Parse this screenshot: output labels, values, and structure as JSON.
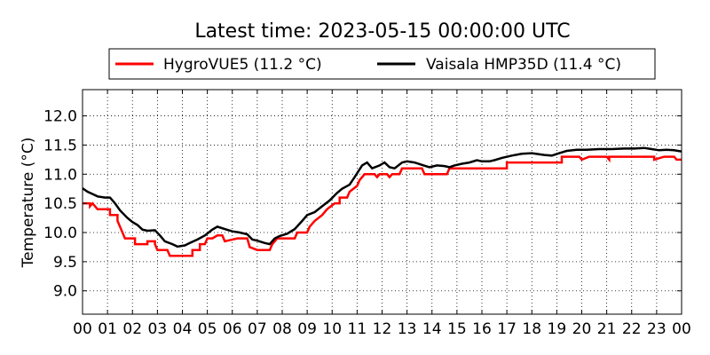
{
  "chart_data": {
    "type": "line",
    "title": "Latest time: 2023-05-15 00:00:00 UTC",
    "xlabel": "",
    "ylabel": "Temperature (°C)",
    "xlim": [
      0,
      24
    ],
    "ylim": [
      8.6,
      12.45
    ],
    "x_ticks": [
      0,
      1,
      2,
      3,
      4,
      5,
      6,
      7,
      8,
      9,
      10,
      11,
      12,
      13,
      14,
      15,
      16,
      17,
      18,
      19,
      20,
      21,
      22,
      23,
      24
    ],
    "x_tick_labels": [
      "00",
      "01",
      "02",
      "03",
      "04",
      "05",
      "06",
      "07",
      "08",
      "09",
      "10",
      "11",
      "12",
      "13",
      "14",
      "15",
      "16",
      "17",
      "18",
      "19",
      "20",
      "21",
      "22",
      "23",
      "00"
    ],
    "y_ticks": [
      9.0,
      9.5,
      10.0,
      10.5,
      11.0,
      11.5,
      12.0
    ],
    "y_tick_labels": [
      "9.0",
      "9.5",
      "10.0",
      "10.5",
      "11.0",
      "11.5",
      "12.0"
    ],
    "grid": true,
    "legend_position": "top-center (above plot)",
    "series": [
      {
        "name": "HygroVUE5 (11.2 °C)",
        "color": "#ff0000",
        "points": [
          [
            0.0,
            10.5
          ],
          [
            0.3,
            10.5
          ],
          [
            0.3,
            10.45
          ],
          [
            0.4,
            10.5
          ],
          [
            0.5,
            10.45
          ],
          [
            0.6,
            10.4
          ],
          [
            1.1,
            10.4
          ],
          [
            1.1,
            10.3
          ],
          [
            1.4,
            10.3
          ],
          [
            1.4,
            10.2
          ],
          [
            1.5,
            10.1
          ],
          [
            1.6,
            10.0
          ],
          [
            1.7,
            9.9
          ],
          [
            2.1,
            9.9
          ],
          [
            2.1,
            9.8
          ],
          [
            2.6,
            9.8
          ],
          [
            2.6,
            9.85
          ],
          [
            2.9,
            9.85
          ],
          [
            2.9,
            9.8
          ],
          [
            3.0,
            9.7
          ],
          [
            3.4,
            9.7
          ],
          [
            3.5,
            9.6
          ],
          [
            4.4,
            9.6
          ],
          [
            4.4,
            9.7
          ],
          [
            4.7,
            9.7
          ],
          [
            4.7,
            9.8
          ],
          [
            4.9,
            9.8
          ],
          [
            5.0,
            9.9
          ],
          [
            5.2,
            9.9
          ],
          [
            5.4,
            9.95
          ],
          [
            5.6,
            9.95
          ],
          [
            5.7,
            9.85
          ],
          [
            6.2,
            9.9
          ],
          [
            6.6,
            9.9
          ],
          [
            6.7,
            9.75
          ],
          [
            7.0,
            9.7
          ],
          [
            7.5,
            9.7
          ],
          [
            7.6,
            9.8
          ],
          [
            7.8,
            9.9
          ],
          [
            8.5,
            9.9
          ],
          [
            8.6,
            10.0
          ],
          [
            9.0,
            10.0
          ],
          [
            9.1,
            10.1
          ],
          [
            9.3,
            10.2
          ],
          [
            9.6,
            10.3
          ],
          [
            9.8,
            10.4
          ],
          [
            10.1,
            10.5
          ],
          [
            10.3,
            10.5
          ],
          [
            10.3,
            10.6
          ],
          [
            10.6,
            10.6
          ],
          [
            10.7,
            10.7
          ],
          [
            11.0,
            10.8
          ],
          [
            11.1,
            10.9
          ],
          [
            11.3,
            11.0
          ],
          [
            11.7,
            11.0
          ],
          [
            11.8,
            10.95
          ],
          [
            11.9,
            11.0
          ],
          [
            12.2,
            11.0
          ],
          [
            12.3,
            10.95
          ],
          [
            12.4,
            11.0
          ],
          [
            12.7,
            11.0
          ],
          [
            12.8,
            11.1
          ],
          [
            13.6,
            11.1
          ],
          [
            13.7,
            11.0
          ],
          [
            14.6,
            11.0
          ],
          [
            14.7,
            11.1
          ],
          [
            17.0,
            11.1
          ],
          [
            17.0,
            11.2
          ],
          [
            19.2,
            11.2
          ],
          [
            19.2,
            11.3
          ],
          [
            19.9,
            11.3
          ],
          [
            20.0,
            11.25
          ],
          [
            20.3,
            11.3
          ],
          [
            21.0,
            11.3
          ],
          [
            21.1,
            11.25
          ],
          [
            21.1,
            11.3
          ],
          [
            22.9,
            11.3
          ],
          [
            22.9,
            11.25
          ],
          [
            23.3,
            11.3
          ],
          [
            23.7,
            11.3
          ],
          [
            23.8,
            11.25
          ],
          [
            24.0,
            11.25
          ]
        ]
      },
      {
        "name": "Vaisala HMP35D (11.4 °C)",
        "color": "#000000",
        "points": [
          [
            0.0,
            10.76
          ],
          [
            0.2,
            10.7
          ],
          [
            0.4,
            10.66
          ],
          [
            0.6,
            10.62
          ],
          [
            0.9,
            10.6
          ],
          [
            1.1,
            10.6
          ],
          [
            1.3,
            10.5
          ],
          [
            1.5,
            10.38
          ],
          [
            1.8,
            10.25
          ],
          [
            2.0,
            10.18
          ],
          [
            2.2,
            10.13
          ],
          [
            2.4,
            10.05
          ],
          [
            2.6,
            10.03
          ],
          [
            2.9,
            10.04
          ],
          [
            3.1,
            9.95
          ],
          [
            3.3,
            9.85
          ],
          [
            3.6,
            9.8
          ],
          [
            3.8,
            9.76
          ],
          [
            4.1,
            9.78
          ],
          [
            4.3,
            9.82
          ],
          [
            4.6,
            9.88
          ],
          [
            4.9,
            9.95
          ],
          [
            5.2,
            10.05
          ],
          [
            5.4,
            10.1
          ],
          [
            5.7,
            10.06
          ],
          [
            6.0,
            10.02
          ],
          [
            6.3,
            10.0
          ],
          [
            6.6,
            9.97
          ],
          [
            6.8,
            9.88
          ],
          [
            7.0,
            9.86
          ],
          [
            7.3,
            9.82
          ],
          [
            7.5,
            9.8
          ],
          [
            7.7,
            9.9
          ],
          [
            7.9,
            9.94
          ],
          [
            8.2,
            9.98
          ],
          [
            8.5,
            10.06
          ],
          [
            8.8,
            10.2
          ],
          [
            9.0,
            10.3
          ],
          [
            9.3,
            10.35
          ],
          [
            9.6,
            10.45
          ],
          [
            9.9,
            10.55
          ],
          [
            10.2,
            10.68
          ],
          [
            10.4,
            10.75
          ],
          [
            10.7,
            10.82
          ],
          [
            10.9,
            10.95
          ],
          [
            11.2,
            11.15
          ],
          [
            11.4,
            11.2
          ],
          [
            11.6,
            11.1
          ],
          [
            11.9,
            11.15
          ],
          [
            12.1,
            11.2
          ],
          [
            12.3,
            11.12
          ],
          [
            12.5,
            11.1
          ],
          [
            12.8,
            11.2
          ],
          [
            13.0,
            11.22
          ],
          [
            13.3,
            11.2
          ],
          [
            13.6,
            11.16
          ],
          [
            13.9,
            11.12
          ],
          [
            14.2,
            11.15
          ],
          [
            14.5,
            11.14
          ],
          [
            14.7,
            11.12
          ],
          [
            14.9,
            11.15
          ],
          [
            15.2,
            11.18
          ],
          [
            15.5,
            11.2
          ],
          [
            15.8,
            11.24
          ],
          [
            16.0,
            11.22
          ],
          [
            16.3,
            11.22
          ],
          [
            16.5,
            11.24
          ],
          [
            16.8,
            11.28
          ],
          [
            17.2,
            11.32
          ],
          [
            17.6,
            11.35
          ],
          [
            18.0,
            11.36
          ],
          [
            18.5,
            11.33
          ],
          [
            18.8,
            11.32
          ],
          [
            19.1,
            11.36
          ],
          [
            19.4,
            11.4
          ],
          [
            19.8,
            11.42
          ],
          [
            20.2,
            11.42
          ],
          [
            20.7,
            11.43
          ],
          [
            21.2,
            11.43
          ],
          [
            21.7,
            11.44
          ],
          [
            22.1,
            11.44
          ],
          [
            22.5,
            11.45
          ],
          [
            22.8,
            11.43
          ],
          [
            23.1,
            11.41
          ],
          [
            23.4,
            11.42
          ],
          [
            23.7,
            11.41
          ],
          [
            24.0,
            11.39
          ]
        ]
      }
    ]
  }
}
